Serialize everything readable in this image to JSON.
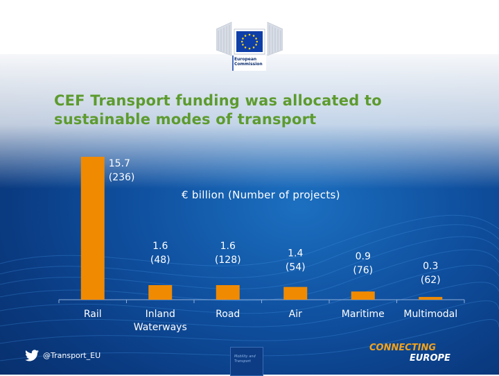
{
  "title": "CEF Transport funding was allocated to sustainable modes of transport",
  "logo": {
    "line1": "European",
    "line2": "Commission"
  },
  "unit_note": "€ billion (Number of projects)",
  "footer": {
    "twitter_handle": "@Transport_EU",
    "dg_label_1": "Mobility and",
    "dg_label_2": "Transport",
    "brand_line1": "CONNECTING",
    "brand_line2": "EUROPE"
  },
  "colors": {
    "bar": "#f08a00",
    "title": "#5d9b2e",
    "brand_orange": "#f3a21c"
  },
  "chart_data": {
    "type": "bar",
    "title": "",
    "xlabel": "",
    "ylabel": "",
    "ylim": [
      0,
      15.7
    ],
    "categories": [
      "Rail",
      "Inland Waterways",
      "Road",
      "Air",
      "Maritime",
      "Multimodal"
    ],
    "values": [
      15.7,
      1.6,
      1.6,
      1.4,
      0.9,
      0.3
    ],
    "value_labels": [
      "15.7",
      "1.6",
      "1.6",
      "1.4",
      "0.9",
      "0.3"
    ],
    "projects_labels": [
      "(236)",
      "(48)",
      "(128)",
      "(54)",
      "(76)",
      "(62)"
    ],
    "series": [
      {
        "values": [
          15.7,
          1.6,
          1.6,
          1.4,
          0.9,
          0.3
        ]
      }
    ]
  }
}
